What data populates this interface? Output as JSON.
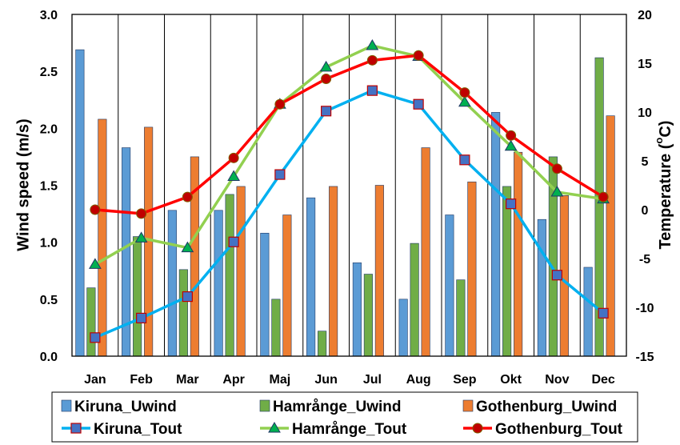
{
  "chart_data": {
    "type": "bar+line",
    "categories": [
      "Jan",
      "Feb",
      "Mar",
      "Apr",
      "Maj",
      "Jun",
      "Jul",
      "Aug",
      "Sep",
      "Okt",
      "Nov",
      "Dec"
    ],
    "ylabel": "Wind speed (m/s)",
    "y2label_prefix": "Temperature (",
    "y2label_degree": "o",
    "y2label_suffix": "C)",
    "ylim": [
      0,
      3.0
    ],
    "y2lim": [
      -15,
      20
    ],
    "yticks": [
      "0.0",
      "0.5",
      "1.0",
      "1.5",
      "2.0",
      "2.5",
      "3.0"
    ],
    "y2ticks": [
      "-15",
      "-10",
      "-5",
      "0",
      "5",
      "10",
      "15",
      "20"
    ],
    "grid": "vertical lines between months",
    "legend_position": "bottom",
    "bar_series": [
      {
        "name": "Kiruna_Uwind",
        "color": "#5B9BD5",
        "values": [
          2.69,
          1.83,
          1.28,
          1.28,
          1.08,
          1.39,
          0.82,
          0.5,
          1.24,
          2.14,
          1.2,
          0.78
        ]
      },
      {
        "name": "Hamrånge_Uwind",
        "color": "#70AD47",
        "values": [
          0.6,
          1.05,
          0.76,
          1.42,
          0.5,
          0.22,
          0.72,
          0.99,
          0.67,
          1.49,
          1.75,
          2.62
        ]
      },
      {
        "name": "Gothenburg_Uwind",
        "color": "#ED7D31",
        "values": [
          2.08,
          2.01,
          1.75,
          1.49,
          1.24,
          1.49,
          1.5,
          1.83,
          1.53,
          1.79,
          1.41,
          2.11
        ]
      }
    ],
    "line_series": [
      {
        "name": "Kiruna_Tout",
        "color": "#00B0F0",
        "marker": "square",
        "marker_color": "#4472C4",
        "values": [
          -13.1,
          -11.1,
          -8.9,
          -3.3,
          3.6,
          10.1,
          12.2,
          10.8,
          5.1,
          0.6,
          -6.7,
          -10.6
        ]
      },
      {
        "name": "Hamrånge_Tout",
        "color": "#92D050",
        "marker": "triangle",
        "marker_color": "#00B050",
        "values": [
          -5.6,
          -2.9,
          -3.9,
          3.4,
          10.8,
          14.6,
          16.8,
          15.7,
          11.0,
          6.5,
          1.8,
          1.1
        ]
      },
      {
        "name": "Gothenburg_Tout",
        "color": "#FF0000",
        "marker": "circle",
        "marker_color": "#C00000",
        "values": [
          0.0,
          -0.4,
          1.3,
          5.3,
          10.8,
          13.4,
          15.3,
          15.8,
          12.0,
          7.6,
          4.2,
          1.3
        ]
      }
    ]
  }
}
